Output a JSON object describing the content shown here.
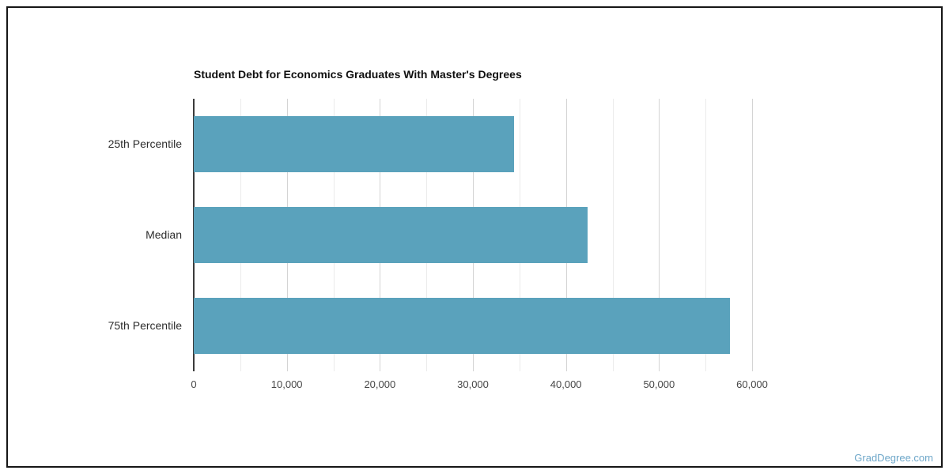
{
  "watermark": {
    "label": "GradDegree.com",
    "color": "#6ea7c9"
  },
  "frame": {
    "border_color": "#161616"
  },
  "chart_data": {
    "type": "bar",
    "orientation": "horizontal",
    "title": "Student Debt for Economics Graduates With Master's Degrees",
    "categories": [
      "25th Percentile",
      "Median",
      "75th Percentile"
    ],
    "values": [
      34400,
      42300,
      57600
    ],
    "xlabel": "",
    "ylabel": "",
    "xlim": [
      0,
      60000
    ],
    "major_tick": 10000,
    "minor_tick": 5000,
    "xticklabels": [
      "0",
      "10,000",
      "20,000",
      "30,000",
      "40,000",
      "50,000",
      "60,000"
    ],
    "bar_color": "#5aa2bc",
    "grid": true,
    "legend": false,
    "gridline_color_major": "#d4d4d4",
    "gridline_color_minor": "#ebebeb",
    "axis_line_color": "#3a3a3a"
  }
}
